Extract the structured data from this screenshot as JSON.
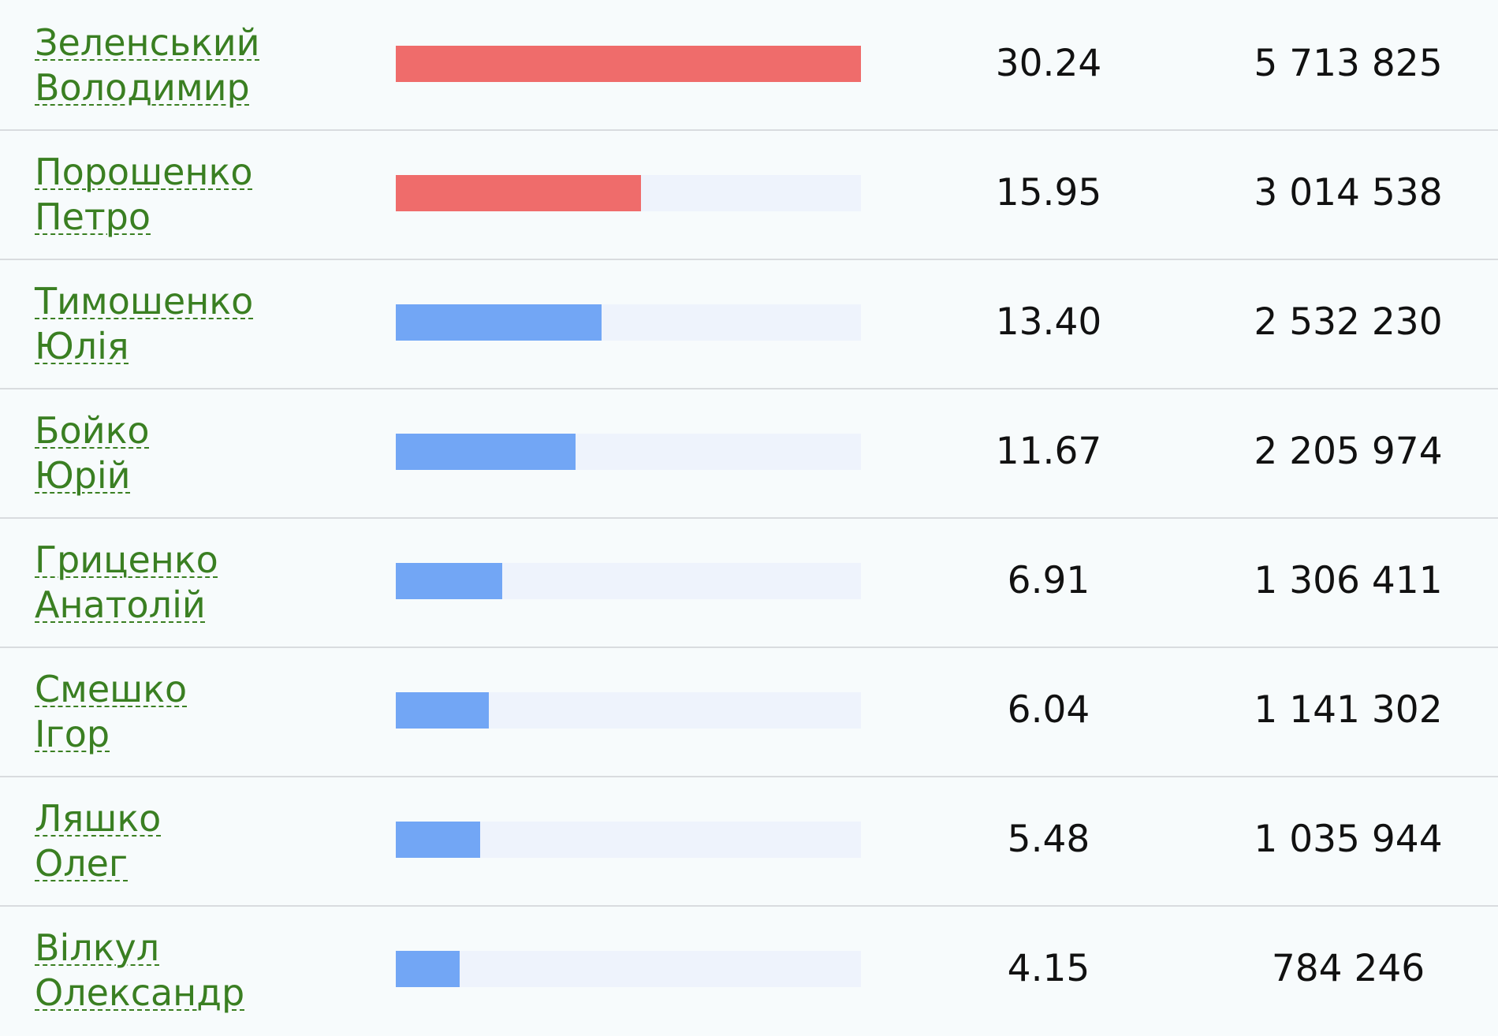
{
  "colors": {
    "leader_bar": "#ef6c6b",
    "other_bar": "#72a6f5",
    "bar_track": "#eef3fc",
    "name_link": "#3a7f22",
    "background": "#f7fbfc",
    "divider": "#d9dcdf"
  },
  "candidates": [
    {
      "surname": "Зеленський",
      "first_name": "Володимир",
      "percent": "30.24",
      "votes": "5 713 825",
      "bar_fraction": 1.0,
      "bar_color": "red"
    },
    {
      "surname": "Порошенко",
      "first_name": "Петро",
      "percent": "15.95",
      "votes": "3 014 538",
      "bar_fraction": 0.527,
      "bar_color": "red"
    },
    {
      "surname": "Тимошенко",
      "first_name": "Юлія",
      "percent": "13.40",
      "votes": "2 532 230",
      "bar_fraction": 0.443,
      "bar_color": "blue"
    },
    {
      "surname": "Бойко",
      "first_name": "Юрій",
      "percent": "11.67",
      "votes": "2 205 974",
      "bar_fraction": 0.386,
      "bar_color": "blue"
    },
    {
      "surname": "Гриценко",
      "first_name": "Анатолій",
      "percent": "6.91",
      "votes": "1 306 411",
      "bar_fraction": 0.229,
      "bar_color": "blue"
    },
    {
      "surname": "Смешко",
      "first_name": "Ігор",
      "percent": "6.04",
      "votes": "1 141 302",
      "bar_fraction": 0.2,
      "bar_color": "blue"
    },
    {
      "surname": "Ляшко",
      "first_name": "Олег",
      "percent": "5.48",
      "votes": "1 035 944",
      "bar_fraction": 0.181,
      "bar_color": "blue"
    },
    {
      "surname": "Вілкул",
      "first_name": "Олександр",
      "percent": "4.15",
      "votes": "784 246",
      "bar_fraction": 0.137,
      "bar_color": "blue"
    }
  ]
}
